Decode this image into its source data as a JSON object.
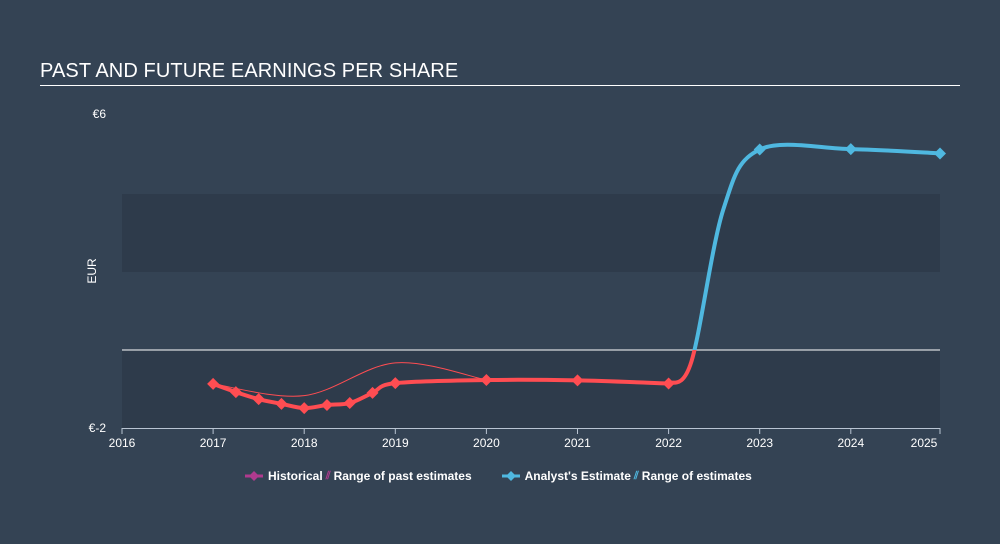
{
  "header": {
    "title": "PAST AND FUTURE EARNINGS PER SHARE"
  },
  "legend": {
    "historical": "Historical",
    "past_range": "Range of past estimates",
    "estimate": "Analyst's Estimate",
    "future_range": "Range of estimates"
  },
  "colors": {
    "background": "#344354",
    "band": "#2e3b4b",
    "historical": "#ff4d52",
    "estimate": "#4fb8e0",
    "legend_historical": "#b03a8e",
    "legend_estimate": "#4fb8e0"
  },
  "chart_data": {
    "type": "line",
    "title": "PAST AND FUTURE EARNINGS PER SHARE",
    "xlabel": "",
    "ylabel": "EUR",
    "ylim": [
      -2,
      6
    ],
    "xlim": [
      2016,
      2025.1
    ],
    "y_tick_labels": [
      "€6",
      "€-2"
    ],
    "x_tick_labels": [
      "2016",
      "2017",
      "2018",
      "2019",
      "2020",
      "2021",
      "2022",
      "2023",
      "2024",
      "2025"
    ],
    "series": [
      {
        "name": "Historical",
        "x": [
          2017,
          2017.25,
          2017.5,
          2017.75,
          2018,
          2018.25,
          2018.5,
          2018.75,
          2019,
          2020,
          2021,
          2022
        ],
        "values": [
          -0.87,
          -1.08,
          -1.26,
          -1.38,
          -1.49,
          -1.41,
          -1.36,
          -1.1,
          -0.85,
          -0.77,
          -0.78,
          -0.86
        ]
      },
      {
        "name": "Range of past estimates",
        "x": [
          2017,
          2018,
          2019,
          2020
        ],
        "values": [
          -0.87,
          -1.17,
          -0.33,
          -0.77
        ]
      },
      {
        "name": "Analyst's Estimate",
        "x": [
          2022,
          2023,
          2024,
          2025
        ],
        "values": [
          -0.86,
          5.14,
          5.15,
          5.04
        ]
      }
    ],
    "zero_line": 0,
    "grid": false,
    "legend_position": "bottom"
  }
}
